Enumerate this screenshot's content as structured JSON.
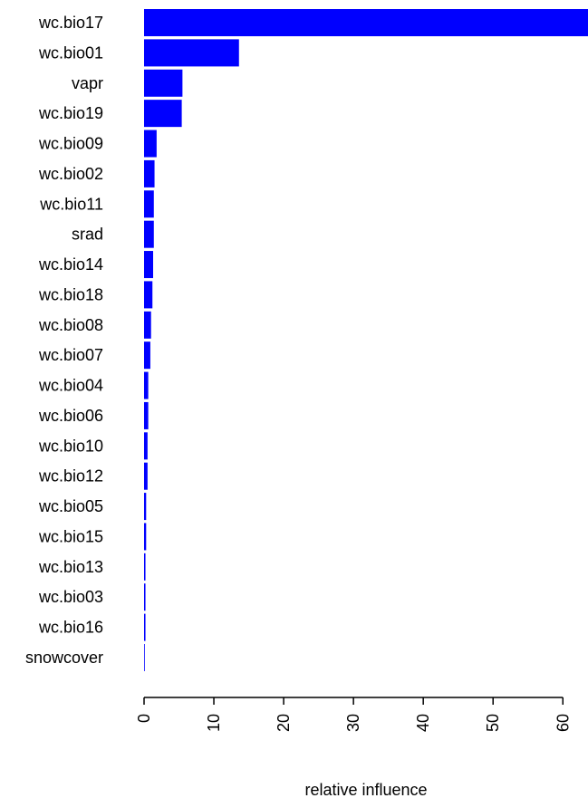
{
  "chart_data": {
    "type": "barh",
    "xlabel": "relative influence",
    "categories": [
      "wc.bio17",
      "wc.bio01",
      "vapr",
      "wc.bio19",
      "wc.bio09",
      "wc.bio02",
      "wc.bio11",
      "srad",
      "wc.bio14",
      "wc.bio18",
      "wc.bio08",
      "wc.bio07",
      "wc.bio04",
      "wc.bio06",
      "wc.bio10",
      "wc.bio12",
      "wc.bio05",
      "wc.bio15",
      "wc.bio13",
      "wc.bio03",
      "wc.bio16",
      "snowcover"
    ],
    "values": [
      63.6,
      13.6,
      5.5,
      5.4,
      1.8,
      1.5,
      1.4,
      1.4,
      1.3,
      1.2,
      1.0,
      0.9,
      0.6,
      0.6,
      0.5,
      0.5,
      0.3,
      0.3,
      0.2,
      0.2,
      0.2,
      0.1
    ],
    "color": "#0000ff",
    "xlim": [
      0,
      63.6
    ],
    "xticks": [
      0,
      10,
      20,
      30,
      40,
      50,
      60
    ]
  }
}
